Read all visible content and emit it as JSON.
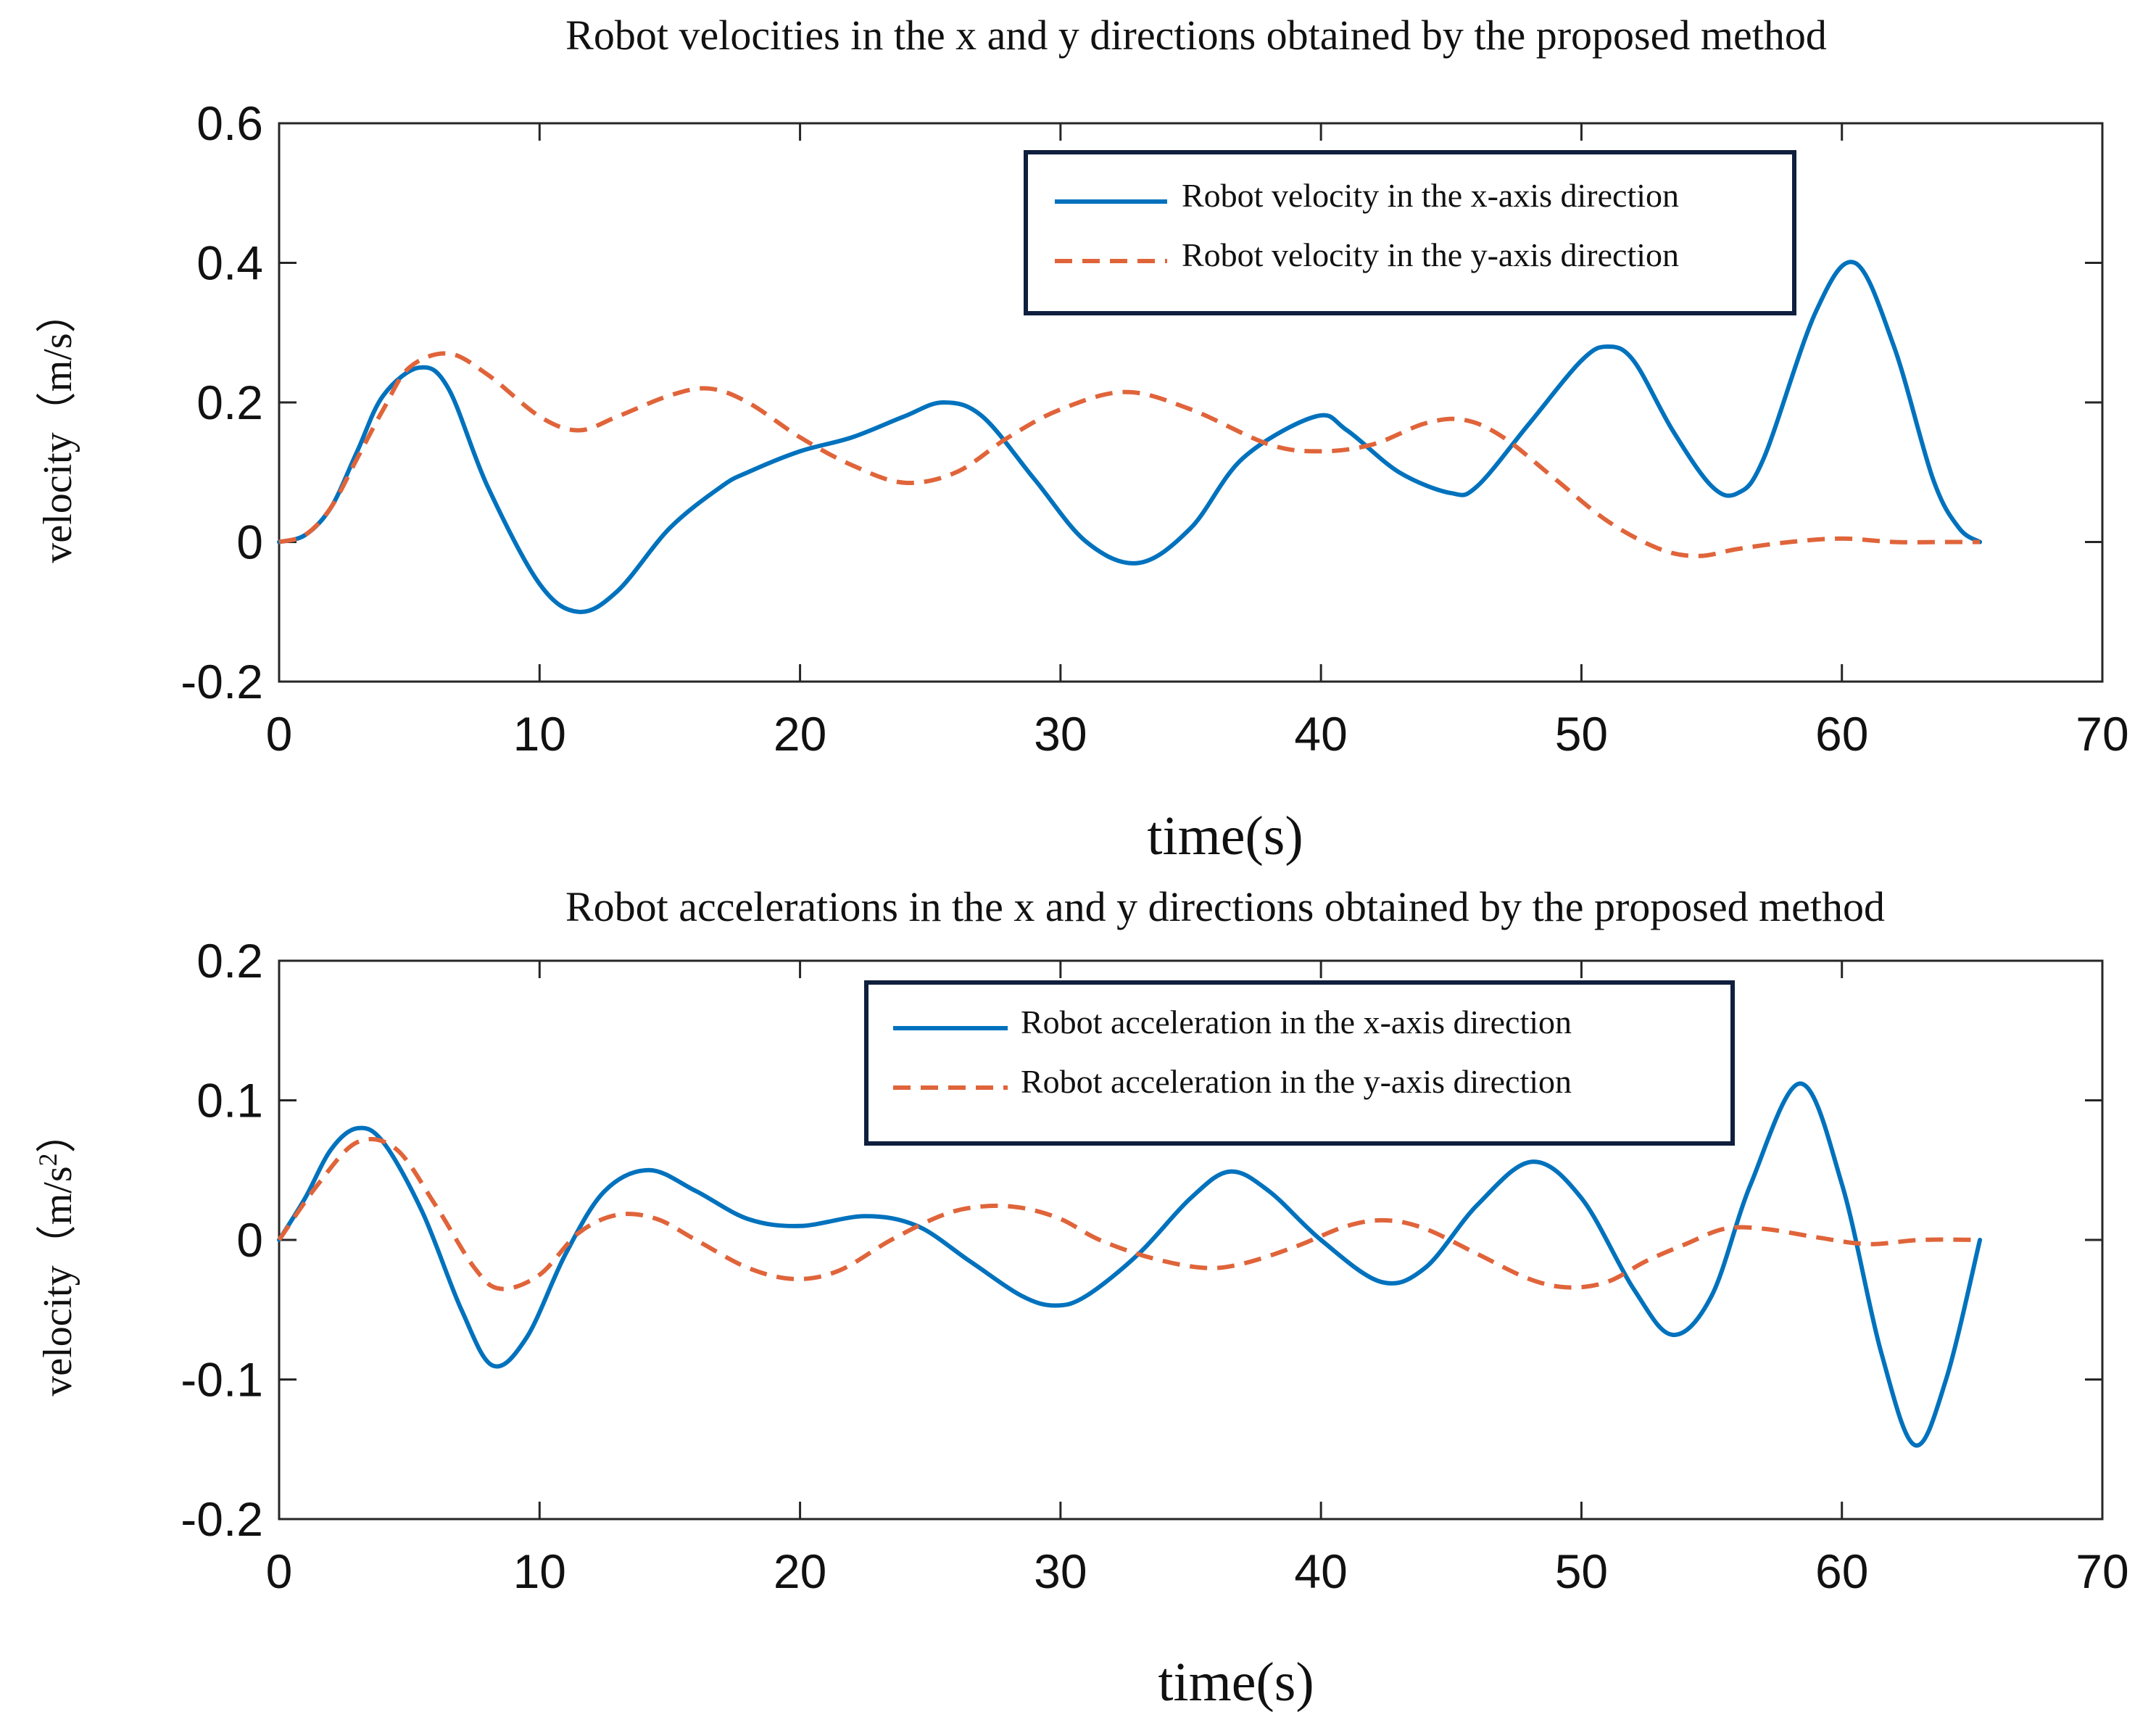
{
  "colors": {
    "series_x": "#0072bd",
    "series_y": "#e0643a"
  },
  "chart_data": [
    {
      "type": "line",
      "title": "Robot velocities in the x and y directions obtained by the proposed method",
      "xlabel": "time(s)",
      "ylabel": "velocity（m/s）",
      "xlim": [
        0,
        70
      ],
      "ylim": [
        -0.2,
        0.6
      ],
      "xticks": [
        0,
        10,
        20,
        30,
        40,
        50,
        60,
        70
      ],
      "xtick_labels": [
        "0",
        "10",
        "20",
        "30",
        "40",
        "50",
        "60",
        "70"
      ],
      "yticks": [
        -0.2,
        0,
        0.2,
        0.4,
        0.6
      ],
      "ytick_labels": [
        "-0.2",
        "0",
        "0.2",
        "0.4",
        "0.6"
      ],
      "legend_position": "top-right",
      "series": [
        {
          "name": "Robot velocity in the x-axis direction",
          "style": "solid",
          "x": [
            0,
            1,
            2,
            3,
            4,
            5.4,
            6.5,
            8,
            10,
            11.5,
            13,
            15,
            17,
            18,
            20,
            22,
            24,
            25.5,
            27,
            29,
            31,
            33,
            35,
            37,
            39.8,
            41,
            43,
            45,
            46,
            48,
            50,
            51,
            52,
            53.5,
            55,
            56,
            57,
            59,
            60.5,
            62,
            63.5,
            64.5,
            65.3
          ],
          "y": [
            0,
            0.01,
            0.05,
            0.13,
            0.21,
            0.25,
            0.22,
            0.08,
            -0.06,
            -0.1,
            -0.07,
            0.02,
            0.08,
            0.1,
            0.13,
            0.15,
            0.18,
            0.2,
            0.18,
            0.09,
            0,
            -0.03,
            0.02,
            0.12,
            0.18,
            0.16,
            0.1,
            0.07,
            0.08,
            0.17,
            0.26,
            0.28,
            0.26,
            0.16,
            0.08,
            0.07,
            0.12,
            0.33,
            0.4,
            0.28,
            0.09,
            0.02,
            0
          ]
        },
        {
          "name": "Robot velocity in the y-axis direction",
          "style": "dashed",
          "x": [
            0,
            1,
            2,
            3,
            4,
            5,
            6.5,
            8,
            10,
            11.5,
            13,
            15,
            16.5,
            18,
            20,
            22,
            24,
            26,
            28,
            30,
            32.5,
            35,
            38,
            40,
            42,
            44,
            45.5,
            47,
            49,
            51,
            53,
            54.5,
            56,
            58,
            60,
            62,
            64,
            65.3
          ],
          "y": [
            0,
            0.01,
            0.05,
            0.12,
            0.19,
            0.25,
            0.27,
            0.24,
            0.18,
            0.16,
            0.18,
            0.21,
            0.22,
            0.2,
            0.15,
            0.11,
            0.085,
            0.1,
            0.15,
            0.19,
            0.215,
            0.19,
            0.14,
            0.13,
            0.14,
            0.17,
            0.175,
            0.15,
            0.09,
            0.03,
            -0.01,
            -0.02,
            -0.01,
            0,
            0.005,
            0,
            0,
            0
          ]
        }
      ]
    },
    {
      "type": "line",
      "title": "Robot accelerations in the x and y directions obtained by the proposed method",
      "xlabel": "time(s)",
      "ylabel": "velocity（m/s",
      "ylabel_sup": "2",
      "ylabel_close": "）",
      "xlim": [
        0,
        70
      ],
      "ylim": [
        -0.2,
        0.2
      ],
      "xticks": [
        0,
        10,
        20,
        30,
        40,
        50,
        60,
        70
      ],
      "xtick_labels": [
        "0",
        "10",
        "20",
        "30",
        "40",
        "50",
        "60",
        "70"
      ],
      "yticks": [
        -0.2,
        -0.1,
        0,
        0.1,
        0.2
      ],
      "ytick_labels": [
        "-0.2",
        "-0.1",
        "0",
        "0.1",
        "0.2"
      ],
      "legend_position": "top-center",
      "series": [
        {
          "name": "Robot acceleration in the x-axis direction",
          "style": "solid",
          "x": [
            0,
            1,
            2,
            3,
            4,
            5.5,
            7,
            8.2,
            9.5,
            11,
            12.5,
            14.2,
            16,
            18,
            20,
            22.5,
            24.5,
            26.5,
            28.5,
            29.8,
            31,
            33,
            35,
            36.5,
            38,
            40,
            42.3,
            44,
            46,
            48.1,
            50,
            52,
            53.5,
            55,
            56.5,
            58.4,
            60,
            61.5,
            62.8,
            64,
            65.3
          ],
          "y": [
            0,
            0.03,
            0.065,
            0.08,
            0.07,
            0.02,
            -0.05,
            -0.09,
            -0.07,
            -0.01,
            0.035,
            0.05,
            0.035,
            0.015,
            0.01,
            0.017,
            0.01,
            -0.015,
            -0.04,
            -0.047,
            -0.04,
            -0.01,
            0.03,
            0.049,
            0.035,
            0,
            -0.03,
            -0.02,
            0.025,
            0.056,
            0.03,
            -0.035,
            -0.068,
            -0.04,
            0.04,
            0.112,
            0.04,
            -0.08,
            -0.147,
            -0.1,
            0
          ]
        },
        {
          "name": "Robot acceleration in the y-axis direction",
          "style": "dashed",
          "x": [
            0,
            1.5,
            3,
            4.5,
            6,
            7.5,
            8.5,
            10,
            11.5,
            13,
            14.5,
            16,
            18,
            19.8,
            21.5,
            23.5,
            25.5,
            27,
            28.5,
            30,
            31.5,
            33.5,
            35.5,
            37,
            39,
            41,
            42.5,
            44,
            46,
            48,
            49.5,
            51,
            52.5,
            54,
            55.5,
            57,
            59,
            61,
            63,
            65.3
          ],
          "y": [
            0,
            0.04,
            0.07,
            0.065,
            0.025,
            -0.02,
            -0.035,
            -0.025,
            0.005,
            0.018,
            0.015,
            0,
            -0.02,
            -0.028,
            -0.022,
            0,
            0.018,
            0.024,
            0.023,
            0.015,
            0,
            -0.013,
            -0.02,
            -0.017,
            -0.005,
            0.01,
            0.014,
            0.008,
            -0.01,
            -0.028,
            -0.034,
            -0.03,
            -0.015,
            -0.003,
            0.008,
            0.008,
            0.002,
            -0.003,
            0,
            0
          ]
        }
      ]
    }
  ]
}
